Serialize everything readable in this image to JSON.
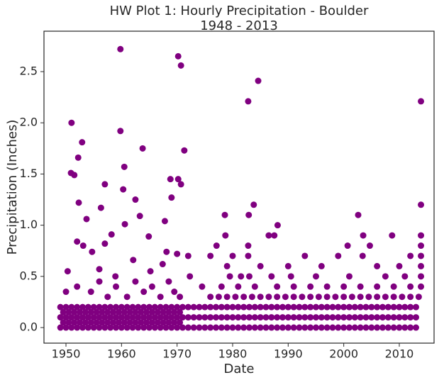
{
  "chart_data": {
    "type": "scatter",
    "title": "HW Plot 1: Hourly Precipitation - Boulder",
    "subtitle": "1948 - 2013",
    "x_label": "Date",
    "y_label": "Precipitation (Inches)",
    "color": "#800080",
    "xlim": [
      1946.04,
      2016.26
    ],
    "ylim": [
      -0.152,
      2.895
    ],
    "xticks": [
      1950,
      1960,
      1970,
      1980,
      1990,
      2000,
      2010
    ],
    "yticks": [
      {
        "value": 0,
        "label": "0.0"
      },
      {
        "value": 0.5,
        "label": "0.5"
      },
      {
        "value": 1,
        "label": "1.0"
      },
      {
        "value": 1.5,
        "label": "1.5"
      },
      {
        "value": 2,
        "label": "2.0"
      },
      {
        "value": 2.5,
        "label": "2.5"
      }
    ],
    "grid": false,
    "series": [
      {
        "x": [
          1949,
          1950,
          1951,
          1952,
          1953,
          1954,
          1955,
          1956,
          1957,
          1958,
          1959,
          1960,
          1961,
          1962,
          1963,
          1964,
          1965,
          1966,
          1967,
          1968,
          1969,
          1970
        ],
        "values": [
          0,
          0,
          0,
          0,
          0,
          0,
          0,
          0,
          0,
          0,
          0,
          0,
          0,
          0,
          0,
          0,
          0,
          0,
          0,
          0,
          0,
          0
        ]
      },
      {
        "x": [
          1949,
          1950,
          1951,
          1952,
          1953,
          1954,
          1955,
          1956,
          1957,
          1958,
          1959,
          1960,
          1961,
          1962,
          1963,
          1964,
          1965,
          1966,
          1967,
          1968,
          1969,
          1970
        ],
        "values": [
          0.1,
          0.1,
          0.1,
          0.1,
          0.1,
          0.1,
          0.1,
          0.1,
          0.1,
          0.1,
          0.1,
          0.1,
          0.1,
          0.1,
          0.1,
          0.1,
          0.1,
          0.1,
          0.1,
          0.1,
          0.1,
          0.1
        ]
      },
      {
        "x": [
          1949,
          1950,
          1951,
          1952,
          1953,
          1954,
          1955,
          1956,
          1957,
          1958,
          1959,
          1960,
          1961,
          1962,
          1963,
          1964,
          1965,
          1966,
          1967,
          1968,
          1969,
          1970
        ],
        "values": [
          0.2,
          0.2,
          0.2,
          0.2,
          0.2,
          0.2,
          0.2,
          0.2,
          0.2,
          0.2,
          0.2,
          0.2,
          0.2,
          0.2,
          0.2,
          0.2,
          0.2,
          0.2,
          0.2,
          0.2,
          0.2,
          0.2
        ]
      },
      {
        "x": [
          1949.5,
          1950.5,
          1951.5,
          1952.5,
          1953.5,
          1954.5,
          1955.5,
          1956.5,
          1957.5,
          1958.5,
          1959.5,
          1960.5,
          1961.5,
          1962.5,
          1963.5,
          1964.5,
          1965.5,
          1966.5,
          1967.5,
          1968.5,
          1969.5,
          1970.5
        ],
        "values": [
          0.05,
          0.05,
          0.05,
          0.05,
          0.05,
          0.05,
          0.05,
          0.05,
          0.05,
          0.05,
          0.05,
          0.05,
          0.05,
          0.05,
          0.05,
          0.05,
          0.05,
          0.05,
          0.05,
          0.05,
          0.05,
          0.05
        ]
      },
      {
        "x": [
          1949.5,
          1950.5,
          1951.5,
          1952.5,
          1953.5,
          1954.5,
          1955.5,
          1956.5,
          1957.5,
          1958.5,
          1959.5,
          1960.5,
          1961.5,
          1962.5,
          1963.5,
          1964.5,
          1965.5,
          1966.5,
          1967.5,
          1968.5,
          1969.5,
          1970.5
        ],
        "values": [
          0.15,
          0.15,
          0.15,
          0.15,
          0.15,
          0.15,
          0.15,
          0.15,
          0.15,
          0.15,
          0.15,
          0.15,
          0.15,
          0.15,
          0.15,
          0.15,
          0.15,
          0.15,
          0.15,
          0.15,
          0.15,
          0.15
        ]
      },
      {
        "x": [
          1971,
          1972,
          1973,
          1974,
          1975,
          1976,
          1977,
          1978,
          1979,
          1980,
          1981,
          1982,
          1983,
          1984,
          1985,
          1986,
          1987,
          1988,
          1989,
          1990,
          1991,
          1992,
          1993,
          1994,
          1995,
          1996,
          1997,
          1998,
          1999,
          2000,
          2001,
          2002,
          2003,
          2004,
          2005,
          2006,
          2007,
          2008,
          2009,
          2010,
          2011,
          2012,
          2013
        ],
        "values": [
          0,
          0,
          0,
          0,
          0,
          0,
          0,
          0,
          0,
          0,
          0,
          0,
          0,
          0,
          0,
          0,
          0,
          0,
          0,
          0,
          0,
          0,
          0,
          0,
          0,
          0,
          0,
          0,
          0,
          0,
          0,
          0,
          0,
          0,
          0,
          0,
          0,
          0,
          0,
          0,
          0,
          0,
          0
        ]
      },
      {
        "x": [
          1971,
          1972,
          1973,
          1974,
          1975,
          1976,
          1977,
          1978,
          1979,
          1980,
          1981,
          1982,
          1983,
          1984,
          1985,
          1986,
          1987,
          1988,
          1989,
          1990,
          1991,
          1992,
          1993,
          1994,
          1995,
          1996,
          1997,
          1998,
          1999,
          2000,
          2001,
          2002,
          2003,
          2004,
          2005,
          2006,
          2007,
          2008,
          2009,
          2010,
          2011,
          2012,
          2013
        ],
        "values": [
          0.1,
          0.1,
          0.1,
          0.1,
          0.1,
          0.1,
          0.1,
          0.1,
          0.1,
          0.1,
          0.1,
          0.1,
          0.1,
          0.1,
          0.1,
          0.1,
          0.1,
          0.1,
          0.1,
          0.1,
          0.1,
          0.1,
          0.1,
          0.1,
          0.1,
          0.1,
          0.1,
          0.1,
          0.1,
          0.1,
          0.1,
          0.1,
          0.1,
          0.1,
          0.1,
          0.1,
          0.1,
          0.1,
          0.1,
          0.1,
          0.1,
          0.1,
          0.1
        ]
      },
      {
        "x": [
          1971,
          1972,
          1973,
          1974,
          1975,
          1976,
          1977,
          1978,
          1979,
          1980,
          1981,
          1982,
          1983,
          1984,
          1985,
          1986,
          1987,
          1988,
          1989,
          1990,
          1991,
          1992,
          1993,
          1994,
          1995,
          1996,
          1997,
          1998,
          1999,
          2000,
          2001,
          2002,
          2003,
          2004,
          2005,
          2006,
          2007,
          2008,
          2009,
          2010,
          2011,
          2012,
          2013
        ],
        "values": [
          0.2,
          0.2,
          0.2,
          0.2,
          0.2,
          0.2,
          0.2,
          0.2,
          0.2,
          0.2,
          0.2,
          0.2,
          0.2,
          0.2,
          0.2,
          0.2,
          0.2,
          0.2,
          0.2,
          0.2,
          0.2,
          0.2,
          0.2,
          0.2,
          0.2,
          0.2,
          0.2,
          0.2,
          0.2,
          0.2,
          0.2,
          0.2,
          0.2,
          0.2,
          0.2,
          0.2,
          0.2,
          0.2,
          0.2,
          0.2,
          0.2,
          0.2,
          0.2
        ]
      },
      {
        "x": [
          1976,
          1977.5,
          1979,
          1980.5,
          1982,
          1983.5,
          1985,
          1986.5,
          1988,
          1989.5,
          1991,
          1992.5,
          1994,
          1995.5,
          1997,
          1998.5,
          2000,
          2001.5,
          2003,
          2004.5,
          2006,
          2007.5,
          2009,
          2010.5,
          2012,
          2013.5
        ],
        "values": [
          0.3,
          0.3,
          0.3,
          0.3,
          0.3,
          0.3,
          0.3,
          0.3,
          0.3,
          0.3,
          0.3,
          0.3,
          0.3,
          0.3,
          0.3,
          0.3,
          0.3,
          0.3,
          0.3,
          0.3,
          0.3,
          0.3,
          0.3,
          0.3,
          0.3,
          0.3
        ]
      },
      {
        "x": [
          1974.5,
          1978,
          1981,
          1984,
          1988,
          1991,
          1994,
          1997,
          2000,
          2003,
          2006,
          2009,
          2012,
          2013.9
        ],
        "values": [
          0.4,
          0.4,
          0.4,
          0.4,
          0.4,
          0.4,
          0.4,
          0.4,
          0.4,
          0.4,
          0.4,
          0.4,
          0.4,
          0.4
        ]
      },
      {
        "x": [
          1972.3,
          1979.5,
          1981.5,
          1983,
          1987,
          1990.5,
          1995,
          2001,
          2007.5,
          2011,
          2013.9
        ],
        "values": [
          0.5,
          0.5,
          0.5,
          0.5,
          0.5,
          0.5,
          0.5,
          0.5,
          0.5,
          0.5,
          0.5
        ]
      },
      {
        "x": [
          1979,
          1985,
          1990,
          1996,
          2006,
          2010,
          2013.9
        ],
        "values": [
          0.6,
          0.6,
          0.6,
          0.6,
          0.6,
          0.6,
          0.6
        ]
      },
      {
        "x": [
          1972,
          1976,
          1980,
          1982.8,
          1993,
          1999,
          2003.4,
          2012,
          2013.9
        ],
        "values": [
          0.7,
          0.7,
          0.7,
          0.7,
          0.7,
          0.7,
          0.7,
          0.7,
          0.7
        ]
      },
      {
        "x": [
          1950,
          1952,
          1954.5,
          1956,
          1957.5,
          1959,
          1961,
          1962.5,
          1964,
          1965.5,
          1967,
          1968.5,
          1969.5,
          1970.5
        ],
        "values": [
          0.35,
          0.4,
          0.35,
          0.45,
          0.3,
          0.4,
          0.3,
          0.45,
          0.35,
          0.4,
          0.3,
          0.45,
          0.35,
          0.3
        ]
      },
      {
        "x": [
          1951.0,
          1959.8,
          1959.8,
          1950.9,
          1951.5,
          1952.9,
          1952.2,
          1960.5,
          1957.0,
          1960.3,
          1963.8,
          1962.5,
          1956.3,
          1963.3,
          1970.2,
          1970.7,
          1971.3,
          1968.8,
          1970.2,
          1970.7,
          1969.0,
          1952.3,
          1953.7,
          1952.0,
          1960.6,
          1964.9,
          1967.8,
          1958.2,
          1953.1,
          1954.7,
          1957.0,
          1968.1,
          1950.3,
          1962.1,
          1965.2,
          1967.4,
          1958.9,
          1970.0,
          1956.0,
          1982.8,
          1984.6,
          2013.9,
          1983.8,
          1982.9,
          1978.6,
          2002.6,
          2013.9,
          1988.1,
          1986.5,
          1987.5,
          1978.7,
          2003.5,
          2008.7,
          2013.9,
          2004.7,
          2000.7,
          2013.9,
          1977.1,
          1982.8
        ],
        "values": [
          2.0,
          2.72,
          1.92,
          1.51,
          1.49,
          1.81,
          1.66,
          1.57,
          1.4,
          1.35,
          1.75,
          1.25,
          1.17,
          1.09,
          2.65,
          2.56,
          1.73,
          1.45,
          1.45,
          1.4,
          1.27,
          1.22,
          1.06,
          0.84,
          1.01,
          0.89,
          1.04,
          0.91,
          0.8,
          0.74,
          0.82,
          0.74,
          0.55,
          0.66,
          0.55,
          0.62,
          0.5,
          0.72,
          0.57,
          2.21,
          2.41,
          2.21,
          1.2,
          1.1,
          1.1,
          1.1,
          1.2,
          1.0,
          0.9,
          0.9,
          0.9,
          0.9,
          0.9,
          0.9,
          0.8,
          0.8,
          0.8,
          0.8,
          0.8
        ]
      }
    ]
  }
}
